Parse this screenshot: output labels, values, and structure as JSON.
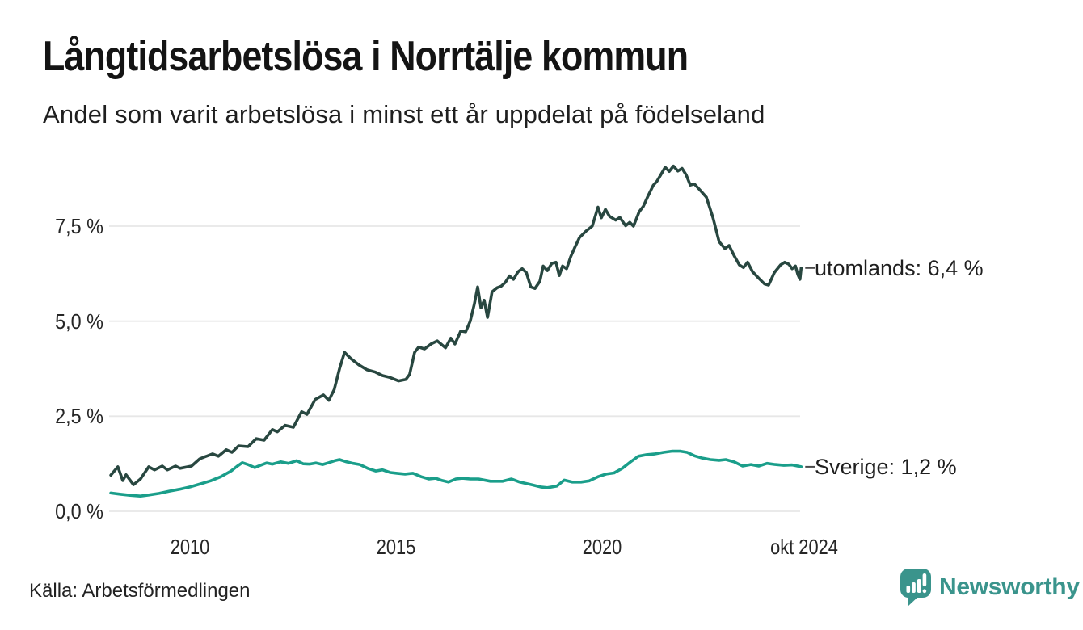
{
  "header": {
    "title": "Långtidsarbetslösa i Norrtälje kommun",
    "subtitle": "Andel som varit arbetslösa i minst ett år uppdelat på födelseland"
  },
  "footer": {
    "source": "Källa: Arbetsförmedlingen",
    "brand_name": "Newsworthy",
    "brand_icon": "bar-chart-speech-bubble-icon"
  },
  "colors": {
    "utomlands_line": "#284740",
    "sverige_line": "#1a9e8a",
    "gridline": "#e7e7e7",
    "label_dash": "#4a4a4a",
    "brand_teal": "#3a948c",
    "text": "#1f1f1f"
  },
  "chart_data": {
    "type": "line",
    "title": "Långtidsarbetslösa i Norrtälje kommun",
    "subtitle": "Andel som varit arbetslösa i minst ett år uppdelat på födelseland",
    "xlabel": "",
    "ylabel": "",
    "unit": "%",
    "xlim": [
      2008.0,
      2024.92
    ],
    "ylim": [
      0,
      9.4
    ],
    "grid": "horizontal",
    "legend_position": "end-of-line-labels",
    "yticks": [
      {
        "value": 7.5,
        "label": "7,5 %"
      },
      {
        "value": 5.0,
        "label": "5,0 %"
      },
      {
        "value": 2.5,
        "label": "2,5 %"
      },
      {
        "value": 0.0,
        "label": "0,0 %"
      }
    ],
    "xticks": [
      {
        "value": 2010,
        "label": "2010"
      },
      {
        "value": 2015,
        "label": "2015"
      },
      {
        "value": 2020,
        "label": "2020"
      },
      {
        "value": 2024.83,
        "label": "okt 2024"
      }
    ],
    "series": [
      {
        "name": "utomlands",
        "end_label": "utomlands: 6,4 %",
        "last_value": "6,4 %",
        "color": "#284740",
        "points": [
          [
            2008.08,
            0.95
          ],
          [
            2008.25,
            1.17
          ],
          [
            2008.37,
            0.81
          ],
          [
            2008.45,
            0.96
          ],
          [
            2008.63,
            0.7
          ],
          [
            2008.8,
            0.85
          ],
          [
            2009.0,
            1.17
          ],
          [
            2009.14,
            1.09
          ],
          [
            2009.33,
            1.19
          ],
          [
            2009.45,
            1.09
          ],
          [
            2009.65,
            1.19
          ],
          [
            2009.76,
            1.13
          ],
          [
            2010.04,
            1.19
          ],
          [
            2010.24,
            1.38
          ],
          [
            2010.55,
            1.51
          ],
          [
            2010.69,
            1.45
          ],
          [
            2010.88,
            1.62
          ],
          [
            2011.02,
            1.55
          ],
          [
            2011.18,
            1.72
          ],
          [
            2011.41,
            1.7
          ],
          [
            2011.61,
            1.91
          ],
          [
            2011.8,
            1.87
          ],
          [
            2012.0,
            2.15
          ],
          [
            2012.12,
            2.09
          ],
          [
            2012.31,
            2.26
          ],
          [
            2012.51,
            2.21
          ],
          [
            2012.71,
            2.62
          ],
          [
            2012.84,
            2.55
          ],
          [
            2013.04,
            2.94
          ],
          [
            2013.24,
            3.06
          ],
          [
            2013.37,
            2.92
          ],
          [
            2013.5,
            3.2
          ],
          [
            2013.63,
            3.75
          ],
          [
            2013.75,
            4.18
          ],
          [
            2013.9,
            4.02
          ],
          [
            2014.1,
            3.85
          ],
          [
            2014.3,
            3.72
          ],
          [
            2014.5,
            3.66
          ],
          [
            2014.67,
            3.57
          ],
          [
            2014.85,
            3.52
          ],
          [
            2015.06,
            3.43
          ],
          [
            2015.24,
            3.47
          ],
          [
            2015.33,
            3.6
          ],
          [
            2015.45,
            4.18
          ],
          [
            2015.55,
            4.32
          ],
          [
            2015.69,
            4.27
          ],
          [
            2015.85,
            4.4
          ],
          [
            2016.0,
            4.48
          ],
          [
            2016.2,
            4.3
          ],
          [
            2016.33,
            4.55
          ],
          [
            2016.43,
            4.4
          ],
          [
            2016.57,
            4.74
          ],
          [
            2016.69,
            4.72
          ],
          [
            2016.8,
            5.0
          ],
          [
            2016.9,
            5.45
          ],
          [
            2016.98,
            5.9
          ],
          [
            2017.06,
            5.35
          ],
          [
            2017.14,
            5.55
          ],
          [
            2017.22,
            5.1
          ],
          [
            2017.33,
            5.77
          ],
          [
            2017.45,
            5.88
          ],
          [
            2017.55,
            5.92
          ],
          [
            2017.65,
            6.02
          ],
          [
            2017.75,
            6.19
          ],
          [
            2017.85,
            6.1
          ],
          [
            2017.96,
            6.3
          ],
          [
            2018.06,
            6.38
          ],
          [
            2018.16,
            6.28
          ],
          [
            2018.27,
            5.9
          ],
          [
            2018.37,
            5.86
          ],
          [
            2018.49,
            6.05
          ],
          [
            2018.57,
            6.45
          ],
          [
            2018.67,
            6.33
          ],
          [
            2018.78,
            6.52
          ],
          [
            2018.88,
            6.55
          ],
          [
            2018.96,
            6.2
          ],
          [
            2019.04,
            6.45
          ],
          [
            2019.14,
            6.38
          ],
          [
            2019.24,
            6.7
          ],
          [
            2019.33,
            6.92
          ],
          [
            2019.45,
            7.2
          ],
          [
            2019.61,
            7.37
          ],
          [
            2019.76,
            7.5
          ],
          [
            2019.9,
            8.0
          ],
          [
            2019.98,
            7.72
          ],
          [
            2020.08,
            7.94
          ],
          [
            2020.18,
            7.76
          ],
          [
            2020.33,
            7.66
          ],
          [
            2020.43,
            7.73
          ],
          [
            2020.57,
            7.51
          ],
          [
            2020.67,
            7.6
          ],
          [
            2020.76,
            7.5
          ],
          [
            2020.9,
            7.88
          ],
          [
            2021.0,
            8.02
          ],
          [
            2021.1,
            8.26
          ],
          [
            2021.24,
            8.57
          ],
          [
            2021.33,
            8.68
          ],
          [
            2021.45,
            8.9
          ],
          [
            2021.53,
            9.05
          ],
          [
            2021.63,
            8.94
          ],
          [
            2021.73,
            9.08
          ],
          [
            2021.84,
            8.95
          ],
          [
            2021.94,
            9.02
          ],
          [
            2022.04,
            8.85
          ],
          [
            2022.14,
            8.58
          ],
          [
            2022.24,
            8.61
          ],
          [
            2022.39,
            8.43
          ],
          [
            2022.53,
            8.26
          ],
          [
            2022.69,
            7.72
          ],
          [
            2022.84,
            7.09
          ],
          [
            2022.98,
            6.91
          ],
          [
            2023.08,
            6.99
          ],
          [
            2023.2,
            6.73
          ],
          [
            2023.33,
            6.48
          ],
          [
            2023.43,
            6.41
          ],
          [
            2023.53,
            6.55
          ],
          [
            2023.65,
            6.3
          ],
          [
            2023.8,
            6.13
          ],
          [
            2023.94,
            5.98
          ],
          [
            2024.04,
            5.95
          ],
          [
            2024.18,
            6.28
          ],
          [
            2024.33,
            6.48
          ],
          [
            2024.43,
            6.55
          ],
          [
            2024.53,
            6.5
          ],
          [
            2024.61,
            6.38
          ],
          [
            2024.69,
            6.45
          ],
          [
            2024.75,
            6.22
          ],
          [
            2024.8,
            6.1
          ],
          [
            2024.83,
            6.4
          ]
        ]
      },
      {
        "name": "Sverige",
        "end_label": "Sverige: 1,2 %",
        "last_value": "1,2 %",
        "color": "#1a9e8a",
        "points": [
          [
            2008.08,
            0.48
          ],
          [
            2008.3,
            0.45
          ],
          [
            2008.55,
            0.42
          ],
          [
            2008.8,
            0.4
          ],
          [
            2009.0,
            0.43
          ],
          [
            2009.25,
            0.47
          ],
          [
            2009.5,
            0.53
          ],
          [
            2009.75,
            0.58
          ],
          [
            2010.0,
            0.64
          ],
          [
            2010.25,
            0.72
          ],
          [
            2010.5,
            0.8
          ],
          [
            2010.75,
            0.91
          ],
          [
            2011.0,
            1.06
          ],
          [
            2011.14,
            1.18
          ],
          [
            2011.27,
            1.28
          ],
          [
            2011.43,
            1.22
          ],
          [
            2011.57,
            1.15
          ],
          [
            2011.71,
            1.21
          ],
          [
            2011.86,
            1.27
          ],
          [
            2012.0,
            1.24
          ],
          [
            2012.2,
            1.3
          ],
          [
            2012.39,
            1.26
          ],
          [
            2012.59,
            1.33
          ],
          [
            2012.75,
            1.25
          ],
          [
            2012.9,
            1.24
          ],
          [
            2013.06,
            1.27
          ],
          [
            2013.22,
            1.23
          ],
          [
            2013.37,
            1.28
          ],
          [
            2013.51,
            1.33
          ],
          [
            2013.63,
            1.36
          ],
          [
            2013.8,
            1.3
          ],
          [
            2013.96,
            1.26
          ],
          [
            2014.12,
            1.23
          ],
          [
            2014.31,
            1.13
          ],
          [
            2014.51,
            1.06
          ],
          [
            2014.67,
            1.09
          ],
          [
            2014.86,
            1.02
          ],
          [
            2015.02,
            1.0
          ],
          [
            2015.22,
            0.98
          ],
          [
            2015.41,
            1.0
          ],
          [
            2015.61,
            0.91
          ],
          [
            2015.8,
            0.85
          ],
          [
            2015.96,
            0.87
          ],
          [
            2016.12,
            0.81
          ],
          [
            2016.27,
            0.77
          ],
          [
            2016.45,
            0.85
          ],
          [
            2016.61,
            0.87
          ],
          [
            2016.8,
            0.85
          ],
          [
            2017.0,
            0.85
          ],
          [
            2017.29,
            0.79
          ],
          [
            2017.59,
            0.79
          ],
          [
            2017.8,
            0.85
          ],
          [
            2018.0,
            0.77
          ],
          [
            2018.29,
            0.7
          ],
          [
            2018.51,
            0.64
          ],
          [
            2018.67,
            0.62
          ],
          [
            2018.9,
            0.66
          ],
          [
            2019.08,
            0.82
          ],
          [
            2019.27,
            0.77
          ],
          [
            2019.49,
            0.77
          ],
          [
            2019.69,
            0.8
          ],
          [
            2019.9,
            0.91
          ],
          [
            2020.1,
            0.98
          ],
          [
            2020.29,
            1.01
          ],
          [
            2020.49,
            1.13
          ],
          [
            2020.69,
            1.3
          ],
          [
            2020.88,
            1.45
          ],
          [
            2021.08,
            1.49
          ],
          [
            2021.29,
            1.51
          ],
          [
            2021.49,
            1.55
          ],
          [
            2021.69,
            1.58
          ],
          [
            2021.9,
            1.58
          ],
          [
            2022.06,
            1.55
          ],
          [
            2022.24,
            1.46
          ],
          [
            2022.43,
            1.4
          ],
          [
            2022.63,
            1.36
          ],
          [
            2022.84,
            1.34
          ],
          [
            2023.0,
            1.36
          ],
          [
            2023.2,
            1.3
          ],
          [
            2023.41,
            1.19
          ],
          [
            2023.61,
            1.23
          ],
          [
            2023.8,
            1.19
          ],
          [
            2024.0,
            1.26
          ],
          [
            2024.2,
            1.23
          ],
          [
            2024.41,
            1.21
          ],
          [
            2024.61,
            1.22
          ],
          [
            2024.83,
            1.17
          ]
        ]
      }
    ]
  }
}
